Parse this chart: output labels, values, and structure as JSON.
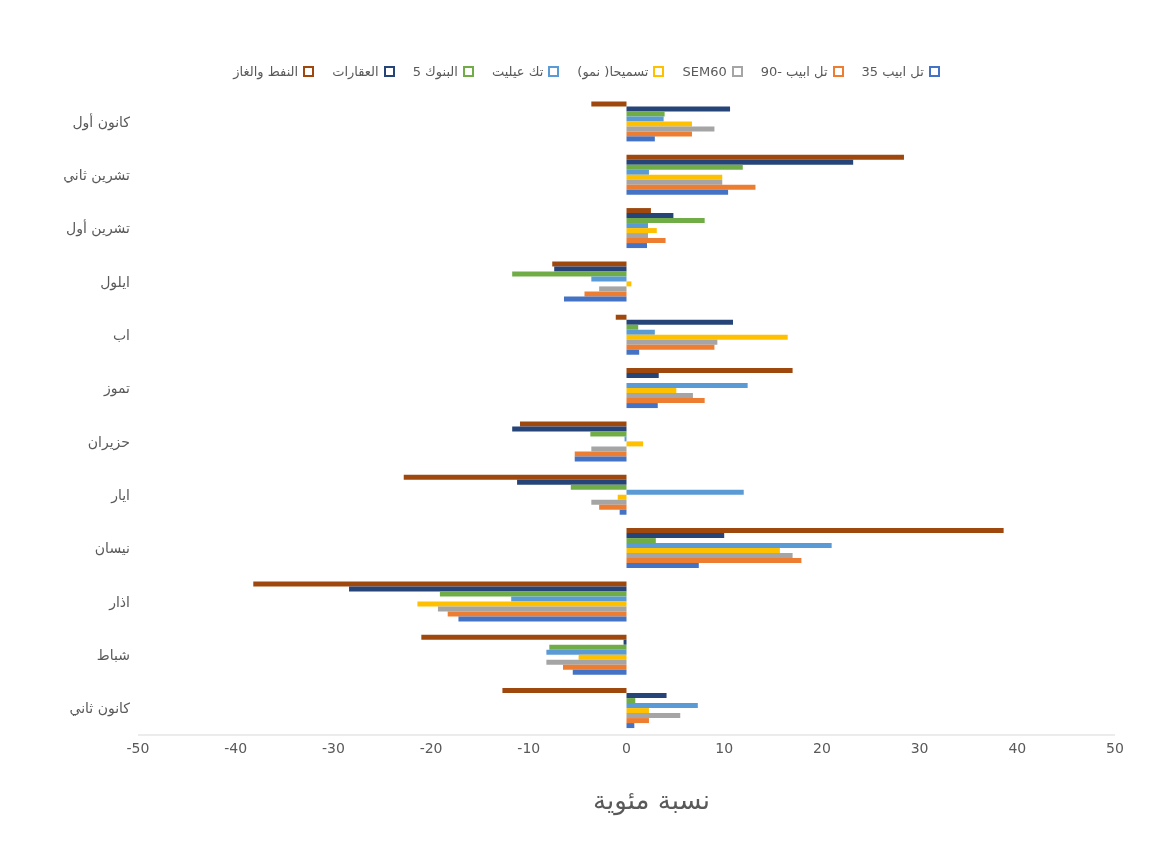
{
  "chart_data": {
    "type": "bar",
    "orientation": "horizontal",
    "xlabel": "نسبة مئوية",
    "categories": [
      "كانون أول",
      "تشرين ثاني",
      "تشرين أول",
      "ايلول",
      "اب",
      "تموز",
      "حزيران",
      "ايار",
      "نيسان",
      "اذار",
      "شباط",
      "كانون ثاني"
    ],
    "series": [
      {
        "name": "تل ابيب 35",
        "color": "#4472c4",
        "values": [
          2.9,
          10.4,
          2.1,
          -6.4,
          1.3,
          3.2,
          -5.3,
          -0.7,
          7.4,
          -17.2,
          -5.5,
          0.8
        ]
      },
      {
        "name": "تل ابيب -90",
        "color": "#ed7d31",
        "values": [
          6.7,
          13.2,
          4.0,
          -4.3,
          9.0,
          8.0,
          -5.3,
          -2.8,
          17.9,
          -18.3,
          -6.5,
          2.3
        ]
      },
      {
        "name": "SEM60",
        "color": "#a5a5a5",
        "values": [
          9.0,
          9.8,
          2.2,
          -2.8,
          9.3,
          6.8,
          -3.6,
          -3.6,
          17.0,
          -19.3,
          -8.2,
          5.5
        ]
      },
      {
        "name": "تسميحا( نمو)",
        "color": "#ffc000",
        "values": [
          6.7,
          9.8,
          3.1,
          0.5,
          16.5,
          5.1,
          1.7,
          -0.9,
          15.7,
          -21.4,
          -4.9,
          2.3
        ]
      },
      {
        "name": "تك عيليت",
        "color": "#5b9bd5",
        "values": [
          3.8,
          2.3,
          2.2,
          -3.6,
          2.9,
          12.4,
          -0.2,
          12.0,
          21.0,
          -11.8,
          -8.2,
          7.3
        ]
      },
      {
        "name": "البنوك 5",
        "color": "#70ad47",
        "values": [
          3.9,
          11.9,
          8.0,
          -11.7,
          1.2,
          0,
          -3.7,
          -5.7,
          3.0,
          -19.1,
          -7.9,
          0.9
        ]
      },
      {
        "name": "العقارات",
        "color": "#264478",
        "values": [
          10.6,
          23.2,
          4.8,
          -7.4,
          10.9,
          3.3,
          -11.7,
          -11.2,
          10.0,
          -28.4,
          -0.3,
          4.1
        ]
      },
      {
        "name": "النفط والغاز",
        "color": "#9e480e",
        "values": [
          -3.6,
          28.4,
          2.5,
          -7.6,
          -1.1,
          17.0,
          -10.9,
          -22.8,
          38.6,
          -38.2,
          -21.0,
          -12.7
        ]
      }
    ],
    "xlim": [
      -50,
      50
    ],
    "xticks": [
      -50,
      -40,
      -30,
      -20,
      -10,
      0,
      10,
      20,
      30,
      40,
      50
    ],
    "legend": "top",
    "grid": false
  }
}
